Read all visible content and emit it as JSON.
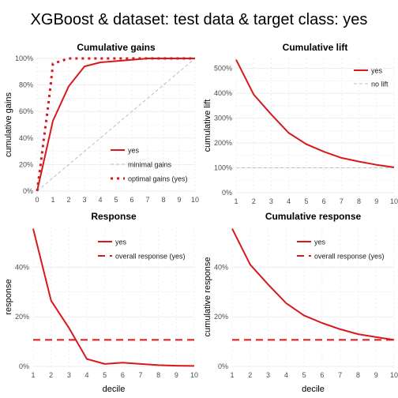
{
  "title": "XGBoost  &  dataset: test data  &  target class: yes",
  "colors": {
    "series": "#d7191c",
    "reference": "#bdbdbd",
    "grid": "#ebebeb",
    "grid_minor": "#f2f2f2",
    "axis_text": "#4d4d4d"
  },
  "chart_data": [
    {
      "type": "line",
      "title": "Cumulative gains",
      "xlabel": "",
      "ylabel": "cumulative gains",
      "xlim": [
        0,
        10
      ],
      "ylim": [
        0,
        1
      ],
      "x_ticks": [
        "0",
        "1",
        "2",
        "3",
        "4",
        "5",
        "6",
        "7",
        "8",
        "9",
        "10"
      ],
      "y_ticks": [
        "0%",
        "20%",
        "40%",
        "60%",
        "80%",
        "100%"
      ],
      "legend_position": "bottom-right",
      "series": [
        {
          "name": "yes",
          "style": "solid",
          "x": [
            0,
            1,
            2,
            3,
            4,
            5,
            6,
            7,
            8,
            9,
            10
          ],
          "values": [
            0,
            0.53,
            0.79,
            0.94,
            0.97,
            0.98,
            0.99,
            1.0,
            1.0,
            1.0,
            1.0
          ]
        },
        {
          "name": "minimal gains",
          "style": "dashed-grey",
          "x": [
            0,
            10
          ],
          "values": [
            0,
            1
          ]
        },
        {
          "name": "optimal gains (yes)",
          "style": "dotted",
          "x": [
            0,
            0.2,
            0.4,
            0.6,
            0.8,
            0.95,
            1,
            2,
            3,
            4,
            5,
            6,
            7,
            8,
            9,
            10
          ],
          "values": [
            0,
            0.18,
            0.37,
            0.55,
            0.74,
            0.9,
            0.96,
            1,
            1,
            1,
            1,
            1,
            1,
            1,
            1,
            1
          ]
        }
      ]
    },
    {
      "type": "line",
      "title": "Cumulative lift",
      "xlabel": "",
      "ylabel": "cumulative lift",
      "xlim": [
        1,
        10
      ],
      "ylim": [
        0,
        5.4
      ],
      "x_ticks": [
        "1",
        "2",
        "3",
        "4",
        "5",
        "6",
        "7",
        "8",
        "9",
        "10"
      ],
      "y_ticks": [
        "0%",
        "100%",
        "200%",
        "300%",
        "400%",
        "500%"
      ],
      "legend_position": "top-right",
      "series": [
        {
          "name": "yes",
          "style": "solid",
          "x": [
            1,
            2,
            3,
            4,
            5,
            6,
            7,
            8,
            9,
            10
          ],
          "values": [
            5.35,
            3.95,
            3.15,
            2.4,
            1.95,
            1.65,
            1.4,
            1.25,
            1.12,
            1.02
          ]
        },
        {
          "name": "no lift",
          "style": "dashed-grey",
          "x": [
            1,
            10
          ],
          "values": [
            1,
            1
          ]
        }
      ]
    },
    {
      "type": "line",
      "title": "Response",
      "xlabel": "decile",
      "ylabel": "response",
      "xlim": [
        1,
        10
      ],
      "ylim": [
        0,
        0.56
      ],
      "x_ticks": [
        "1",
        "2",
        "3",
        "4",
        "5",
        "6",
        "7",
        "8",
        "9",
        "10"
      ],
      "y_ticks": [
        "0%",
        "20%",
        "40%"
      ],
      "legend_position": "top-right",
      "series": [
        {
          "name": "yes",
          "style": "solid",
          "x": [
            1,
            2,
            3,
            4,
            5,
            6,
            7,
            8,
            9,
            10
          ],
          "values": [
            0.555,
            0.265,
            0.155,
            0.03,
            0.01,
            0.015,
            0.01,
            0.005,
            0.003,
            0.002
          ]
        },
        {
          "name": "overall response (yes)",
          "style": "dashed",
          "x": [
            1,
            10
          ],
          "values": [
            0.107,
            0.107
          ]
        }
      ]
    },
    {
      "type": "line",
      "title": "Cumulative response",
      "xlabel": "decile",
      "ylabel": "cumulative response",
      "xlim": [
        1,
        10
      ],
      "ylim": [
        0,
        0.56
      ],
      "x_ticks": [
        "1",
        "2",
        "3",
        "4",
        "5",
        "6",
        "7",
        "8",
        "9",
        "10"
      ],
      "y_ticks": [
        "0%",
        "20%",
        "40%"
      ],
      "legend_position": "top-right",
      "series": [
        {
          "name": "yes",
          "style": "solid",
          "x": [
            1,
            2,
            3,
            4,
            5,
            6,
            7,
            8,
            9,
            10
          ],
          "values": [
            0.555,
            0.41,
            0.33,
            0.255,
            0.205,
            0.175,
            0.15,
            0.13,
            0.118,
            0.107
          ]
        },
        {
          "name": "overall response (yes)",
          "style": "dashed",
          "x": [
            1,
            10
          ],
          "values": [
            0.107,
            0.107
          ]
        }
      ]
    }
  ]
}
